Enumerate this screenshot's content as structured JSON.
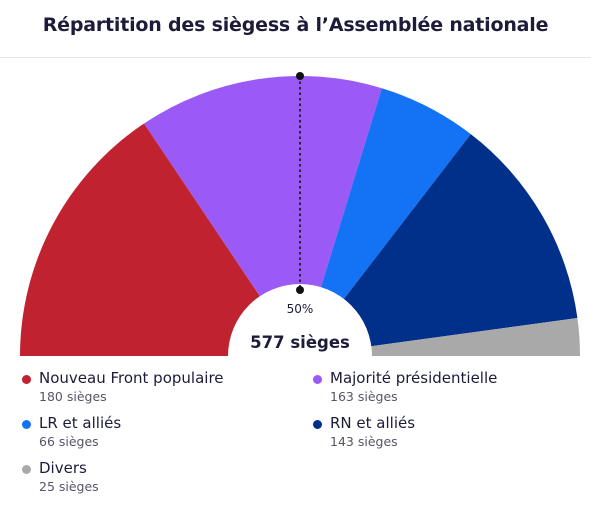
{
  "title": "Répartition des siègess à l’Assemblée nationale",
  "chart_data": {
    "type": "pie",
    "shape": "half-donut",
    "total_label": "577 sièges",
    "majority_label": "50%",
    "series": [
      {
        "name": "Nouveau Front populaire",
        "value": 180,
        "count_label": "180 sièges",
        "color": "#c0232f"
      },
      {
        "name": "Majorité présidentielle",
        "value": 163,
        "count_label": "163 sièges",
        "color": "#9b59f5"
      },
      {
        "name": "LR et alliés",
        "value": 66,
        "count_label": "66 sièges",
        "color": "#1473f5"
      },
      {
        "name": "RN et alliés",
        "value": 143,
        "count_label": "143 sièges",
        "color": "#00308a"
      },
      {
        "name": "Divers",
        "value": 25,
        "count_label": "25 sièges",
        "color": "#a9a9a9"
      }
    ],
    "legend": {
      "placement": "bottom",
      "columns": 2
    }
  }
}
